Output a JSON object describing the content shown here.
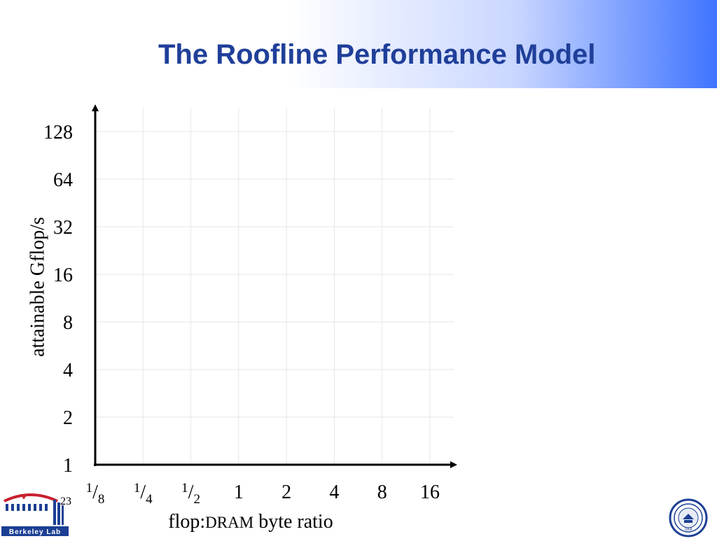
{
  "slide": {
    "title": "The Roofline Performance Model",
    "number": "23",
    "logo_left_text": "Berkeley Lab",
    "seal_text": "1868"
  },
  "colors": {
    "title": "#1f3f99",
    "header_gradient_end": "#3f74ff",
    "grid": "#e6e6e6",
    "axis": "#000000",
    "logo_red": "#c8202f",
    "logo_blue": "#1c3f94",
    "seal_blue": "#1c3f94"
  },
  "chart_data": {
    "type": "line",
    "title": "",
    "xlabel": {
      "prefix": "flop:",
      "small": "DRAM",
      "suffix": " byte ratio"
    },
    "ylabel": "attainable Gflop/s",
    "xscale": "log2",
    "yscale": "log2",
    "xlim": [
      0.125,
      16
    ],
    "ylim": [
      1,
      128
    ],
    "x_ticks": [
      {
        "value": 0.125,
        "num": "1",
        "den": "8"
      },
      {
        "value": 0.25,
        "num": "1",
        "den": "4"
      },
      {
        "value": 0.5,
        "num": "1",
        "den": "2"
      },
      {
        "value": 1,
        "label": "1"
      },
      {
        "value": 2,
        "label": "2"
      },
      {
        "value": 4,
        "label": "4"
      },
      {
        "value": 8,
        "label": "8"
      },
      {
        "value": 16,
        "label": "16"
      }
    ],
    "y_ticks": [
      {
        "value": 1,
        "label": "1"
      },
      {
        "value": 2,
        "label": "2"
      },
      {
        "value": 4,
        "label": "4"
      },
      {
        "value": 8,
        "label": "8"
      },
      {
        "value": 16,
        "label": "16"
      },
      {
        "value": 32,
        "label": "32"
      },
      {
        "value": 64,
        "label": "64"
      },
      {
        "value": 128,
        "label": "128"
      }
    ],
    "grid": true,
    "series": []
  }
}
